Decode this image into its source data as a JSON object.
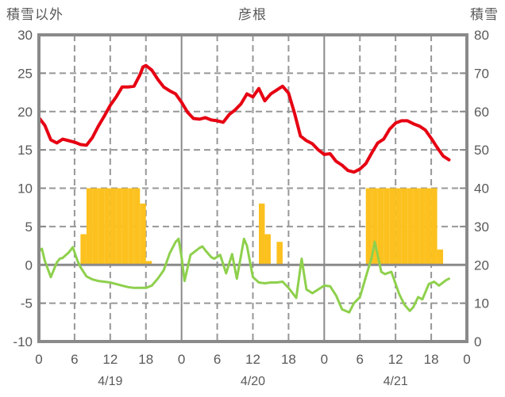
{
  "header": {
    "left_axis_title": "積雪以外",
    "chart_title": "彦根",
    "right_axis_title": "積雪"
  },
  "chart_data": {
    "type": "line",
    "title": "彦根",
    "left_axis": {
      "label": "積雪以外",
      "min": -10,
      "max": 30,
      "ticks": [
        30,
        25,
        20,
        15,
        10,
        5,
        0,
        -5,
        -10
      ]
    },
    "right_axis": {
      "label": "積雪",
      "min": 0,
      "max": 80,
      "ticks": [
        80,
        70,
        60,
        50,
        40,
        30,
        20,
        10,
        0
      ]
    },
    "x_axis": {
      "unit": "hour",
      "min": 0,
      "max": 72,
      "tick_interval": 6,
      "hour_tick_labels": [
        "0",
        "6",
        "12",
        "18",
        "0",
        "6",
        "12",
        "18",
        "0",
        "6",
        "12",
        "18",
        "0"
      ],
      "day_labels": [
        "4/19",
        "4/20",
        "4/21"
      ],
      "day_label_hours": [
        12,
        36,
        60
      ]
    },
    "grid": {
      "h_dashed_values": [
        25,
        20,
        15,
        10,
        5,
        -5
      ],
      "v_dashed_hours": [
        6,
        12,
        18,
        30,
        36,
        42,
        54,
        60,
        66
      ],
      "v_solid_hours": [
        24,
        48
      ],
      "zero_line_value": 0
    },
    "series": [
      {
        "name": "red",
        "color": "#e60012",
        "width": 4,
        "points": [
          [
            0,
            19.2
          ],
          [
            1,
            18.2
          ],
          [
            2,
            16.3
          ],
          [
            3,
            15.9
          ],
          [
            4,
            16.4
          ],
          [
            5,
            16.2
          ],
          [
            6,
            16.0
          ],
          [
            7,
            15.7
          ],
          [
            8,
            15.6
          ],
          [
            9,
            16.6
          ],
          [
            10,
            18.1
          ],
          [
            11,
            19.4
          ],
          [
            12,
            20.8
          ],
          [
            13,
            21.9
          ],
          [
            14,
            23.2
          ],
          [
            15,
            23.2
          ],
          [
            16,
            23.3
          ],
          [
            17,
            24.8
          ],
          [
            17.5,
            25.8
          ],
          [
            18,
            26.0
          ],
          [
            19,
            25.4
          ],
          [
            20,
            24.2
          ],
          [
            21,
            23.2
          ],
          [
            22,
            22.7
          ],
          [
            23,
            22.3
          ],
          [
            24,
            21.2
          ],
          [
            25,
            19.9
          ],
          [
            26,
            19.1
          ],
          [
            27,
            19.0
          ],
          [
            28,
            19.2
          ],
          [
            29,
            18.9
          ],
          [
            30,
            18.8
          ],
          [
            31,
            18.6
          ],
          [
            32,
            19.6
          ],
          [
            33,
            20.2
          ],
          [
            34,
            21.0
          ],
          [
            35,
            22.3
          ],
          [
            36,
            21.9
          ],
          [
            37,
            23.0
          ],
          [
            38,
            21.4
          ],
          [
            39,
            22.3
          ],
          [
            40,
            22.8
          ],
          [
            41,
            23.3
          ],
          [
            42,
            22.4
          ],
          [
            43,
            19.8
          ],
          [
            44,
            16.8
          ],
          [
            45,
            16.2
          ],
          [
            46,
            15.8
          ],
          [
            47,
            15.0
          ],
          [
            48,
            14.4
          ],
          [
            49,
            14.5
          ],
          [
            50,
            13.5
          ],
          [
            51,
            13.0
          ],
          [
            52,
            12.3
          ],
          [
            53,
            12.1
          ],
          [
            54,
            12.5
          ],
          [
            55,
            13.2
          ],
          [
            56,
            14.6
          ],
          [
            57,
            15.9
          ],
          [
            58,
            16.4
          ],
          [
            59,
            17.7
          ],
          [
            60,
            18.5
          ],
          [
            61,
            18.8
          ],
          [
            62,
            18.8
          ],
          [
            63,
            18.4
          ],
          [
            64,
            18.1
          ],
          [
            65,
            17.6
          ],
          [
            66,
            16.5
          ],
          [
            67,
            15.3
          ],
          [
            68,
            14.2
          ],
          [
            69,
            13.7
          ]
        ]
      },
      {
        "name": "green",
        "color": "#8ed04c",
        "width": 3,
        "points": [
          [
            0,
            1.8
          ],
          [
            0.5,
            2.1
          ],
          [
            1,
            0.5
          ],
          [
            2,
            -1.6
          ],
          [
            3,
            0.3
          ],
          [
            3.5,
            0.8
          ],
          [
            4,
            0.9
          ],
          [
            5,
            1.6
          ],
          [
            5.7,
            2.3
          ],
          [
            6.5,
            0.5
          ],
          [
            7,
            -0.3
          ],
          [
            8,
            -1.5
          ],
          [
            9,
            -1.9
          ],
          [
            10,
            -2.1
          ],
          [
            11,
            -2.2
          ],
          [
            12,
            -2.3
          ],
          [
            13,
            -2.5
          ],
          [
            14,
            -2.7
          ],
          [
            15,
            -2.9
          ],
          [
            16,
            -3.0
          ],
          [
            17,
            -3.0
          ],
          [
            18,
            -3.0
          ],
          [
            19,
            -2.7
          ],
          [
            20,
            -1.8
          ],
          [
            21,
            -0.7
          ],
          [
            22,
            1.5
          ],
          [
            23,
            3.0
          ],
          [
            23.5,
            3.4
          ],
          [
            24,
            1.0
          ],
          [
            24.5,
            -2.1
          ],
          [
            25.5,
            1.3
          ],
          [
            26,
            1.6
          ],
          [
            27,
            2.2
          ],
          [
            27.5,
            2.4
          ],
          [
            28,
            1.9
          ],
          [
            29,
            1.0
          ],
          [
            29.5,
            0.8
          ],
          [
            30.5,
            1.3
          ],
          [
            31.5,
            -1.1
          ],
          [
            32.5,
            1.4
          ],
          [
            33.3,
            -1.8
          ],
          [
            34.5,
            3.4
          ],
          [
            35,
            2.5
          ],
          [
            36,
            -1.6
          ],
          [
            37,
            -2.3
          ],
          [
            38,
            -2.4
          ],
          [
            39,
            -2.3
          ],
          [
            40,
            -2.3
          ],
          [
            41,
            -2.2
          ],
          [
            42,
            -3.0
          ],
          [
            43.3,
            -4.3
          ],
          [
            44.2,
            0.8
          ],
          [
            45,
            -3.2
          ],
          [
            46,
            -3.7
          ],
          [
            47,
            -3.2
          ],
          [
            48,
            -2.7
          ],
          [
            49,
            -2.8
          ],
          [
            50,
            -4.0
          ],
          [
            51,
            -5.8
          ],
          [
            52.2,
            -6.2
          ],
          [
            53,
            -5.0
          ],
          [
            54,
            -4.2
          ],
          [
            55,
            -1.6
          ],
          [
            56,
            1.0
          ],
          [
            56.5,
            3.0
          ],
          [
            57.6,
            -0.9
          ],
          [
            58.2,
            -1.2
          ],
          [
            59.3,
            -0.9
          ],
          [
            60.6,
            -3.8
          ],
          [
            61.5,
            -5.2
          ],
          [
            62.4,
            -6.0
          ],
          [
            63,
            -5.5
          ],
          [
            63.8,
            -4.2
          ],
          [
            64.5,
            -4.5
          ],
          [
            65.6,
            -2.5
          ],
          [
            66.5,
            -2.2
          ],
          [
            67.3,
            -2.7
          ],
          [
            68.5,
            -2.0
          ],
          [
            69,
            -1.8
          ]
        ]
      }
    ],
    "bars": {
      "name": "orange",
      "color": "#fcc11e",
      "values": [
        {
          "hour": 7,
          "value": 4
        },
        {
          "hour": 8,
          "value": 10
        },
        {
          "hour": 9,
          "value": 10
        },
        {
          "hour": 10,
          "value": 10
        },
        {
          "hour": 11,
          "value": 10
        },
        {
          "hour": 12,
          "value": 10
        },
        {
          "hour": 13,
          "value": 10
        },
        {
          "hour": 14,
          "value": 10
        },
        {
          "hour": 15,
          "value": 10
        },
        {
          "hour": 16,
          "value": 10
        },
        {
          "hour": 17,
          "value": 8
        },
        {
          "hour": 18,
          "value": 0.5
        },
        {
          "hour": 37,
          "value": 8
        },
        {
          "hour": 38,
          "value": 4
        },
        {
          "hour": 40,
          "value": 3
        },
        {
          "hour": 55,
          "value": 10
        },
        {
          "hour": 56,
          "value": 10
        },
        {
          "hour": 57,
          "value": 10
        },
        {
          "hour": 58,
          "value": 10
        },
        {
          "hour": 59,
          "value": 10
        },
        {
          "hour": 60,
          "value": 10
        },
        {
          "hour": 61,
          "value": 10
        },
        {
          "hour": 62,
          "value": 10
        },
        {
          "hour": 63,
          "value": 10
        },
        {
          "hour": 64,
          "value": 10
        },
        {
          "hour": 65,
          "value": 10
        },
        {
          "hour": 66,
          "value": 10
        },
        {
          "hour": 67,
          "value": 2
        }
      ]
    },
    "colors": {
      "frame": "#8a8a8a",
      "grid": "#979797",
      "text": "#595959"
    }
  }
}
